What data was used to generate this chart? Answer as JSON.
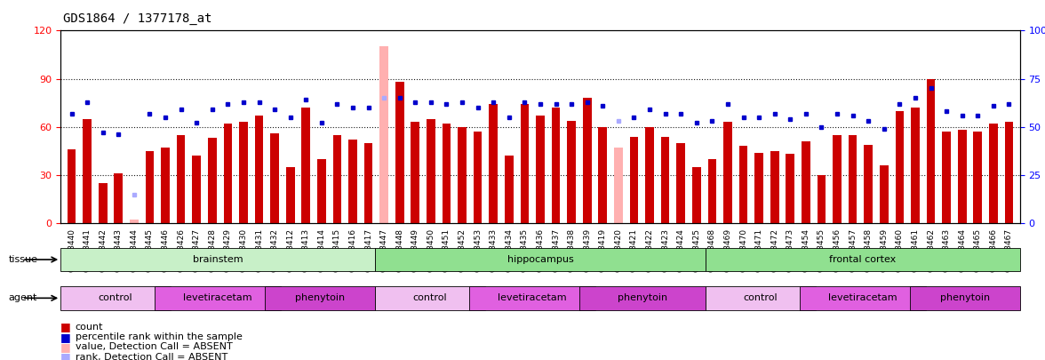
{
  "title": "GDS1864 / 1377178_at",
  "samples": [
    "GSM53440",
    "GSM53441",
    "GSM53442",
    "GSM53443",
    "GSM53444",
    "GSM53445",
    "GSM53446",
    "GSM53426",
    "GSM53427",
    "GSM53428",
    "GSM53429",
    "GSM53430",
    "GSM53431",
    "GSM53432",
    "GSM53412",
    "GSM53413",
    "GSM53414",
    "GSM53415",
    "GSM53416",
    "GSM53417",
    "GSM53447",
    "GSM53448",
    "GSM53449",
    "GSM53450",
    "GSM53451",
    "GSM53452",
    "GSM53453",
    "GSM53433",
    "GSM53434",
    "GSM53435",
    "GSM53436",
    "GSM53437",
    "GSM53438",
    "GSM53439",
    "GSM53419",
    "GSM53420",
    "GSM53421",
    "GSM53422",
    "GSM53423",
    "GSM53424",
    "GSM53425",
    "GSM53468",
    "GSM53469",
    "GSM53470",
    "GSM53471",
    "GSM53472",
    "GSM53473",
    "GSM53454",
    "GSM53455",
    "GSM53456",
    "GSM53457",
    "GSM53458",
    "GSM53459",
    "GSM53460",
    "GSM53461",
    "GSM53462",
    "GSM53463",
    "GSM53464",
    "GSM53465",
    "GSM53466",
    "GSM53467"
  ],
  "count_values": [
    46,
    65,
    25,
    31,
    2,
    45,
    47,
    55,
    42,
    53,
    62,
    63,
    67,
    56,
    35,
    72,
    40,
    55,
    52,
    50,
    110,
    88,
    63,
    65,
    62,
    60,
    57,
    74,
    42,
    74,
    67,
    72,
    64,
    78,
    60,
    47,
    54,
    60,
    54,
    50,
    35,
    40,
    63,
    48,
    44,
    45,
    43,
    51,
    30,
    55,
    55,
    49,
    36,
    70,
    72,
    90,
    57,
    58,
    57,
    62,
    63
  ],
  "rank_values": [
    57,
    63,
    47,
    46,
    15,
    57,
    55,
    59,
    52,
    59,
    62,
    63,
    63,
    59,
    55,
    64,
    52,
    62,
    60,
    60,
    65,
    65,
    63,
    63,
    62,
    63,
    60,
    63,
    55,
    63,
    62,
    62,
    62,
    63,
    61,
    53,
    55,
    59,
    57,
    57,
    52,
    53,
    62,
    55,
    55,
    57,
    54,
    57,
    50,
    57,
    56,
    53,
    49,
    62,
    65,
    70,
    58,
    56,
    56,
    61,
    62
  ],
  "absent_indices": [
    4,
    20,
    35
  ],
  "tissue_groups": [
    {
      "label": "brainstem",
      "start": 0,
      "end": 19,
      "color": "#c8f0c8"
    },
    {
      "label": "hippocampus",
      "start": 20,
      "end": 40,
      "color": "#90e090"
    },
    {
      "label": "frontal cortex",
      "start": 41,
      "end": 60,
      "color": "#90e090"
    }
  ],
  "agent_groups": [
    {
      "label": "control",
      "start": 0,
      "end": 6,
      "color": "#f0c0f0"
    },
    {
      "label": "levetiracetam",
      "start": 6,
      "end": 13,
      "color": "#e060e0"
    },
    {
      "label": "phenytoin",
      "start": 13,
      "end": 19,
      "color": "#cc44cc"
    },
    {
      "label": "control",
      "start": 20,
      "end": 26,
      "color": "#f0c0f0"
    },
    {
      "label": "levetiracetam",
      "start": 26,
      "end": 33,
      "color": "#e060e0"
    },
    {
      "label": "phenytoin",
      "start": 33,
      "end": 40,
      "color": "#cc44cc"
    },
    {
      "label": "control",
      "start": 41,
      "end": 47,
      "color": "#f0c0f0"
    },
    {
      "label": "levetiracetam",
      "start": 47,
      "end": 54,
      "color": "#e060e0"
    },
    {
      "label": "phenytoin",
      "start": 54,
      "end": 60,
      "color": "#cc44cc"
    }
  ],
  "ylim_left": [
    0,
    120
  ],
  "ylim_right": [
    0,
    100
  ],
  "yticks_left": [
    0,
    30,
    60,
    90,
    120
  ],
  "yticks_right": [
    0,
    25,
    50,
    75,
    100
  ],
  "bar_color": "#cc0000",
  "absent_bar_color": "#ffb0b0",
  "dot_color": "#0000cc",
  "absent_dot_color": "#aaaaff",
  "title_fontsize": 10,
  "tick_fontsize": 6.5
}
